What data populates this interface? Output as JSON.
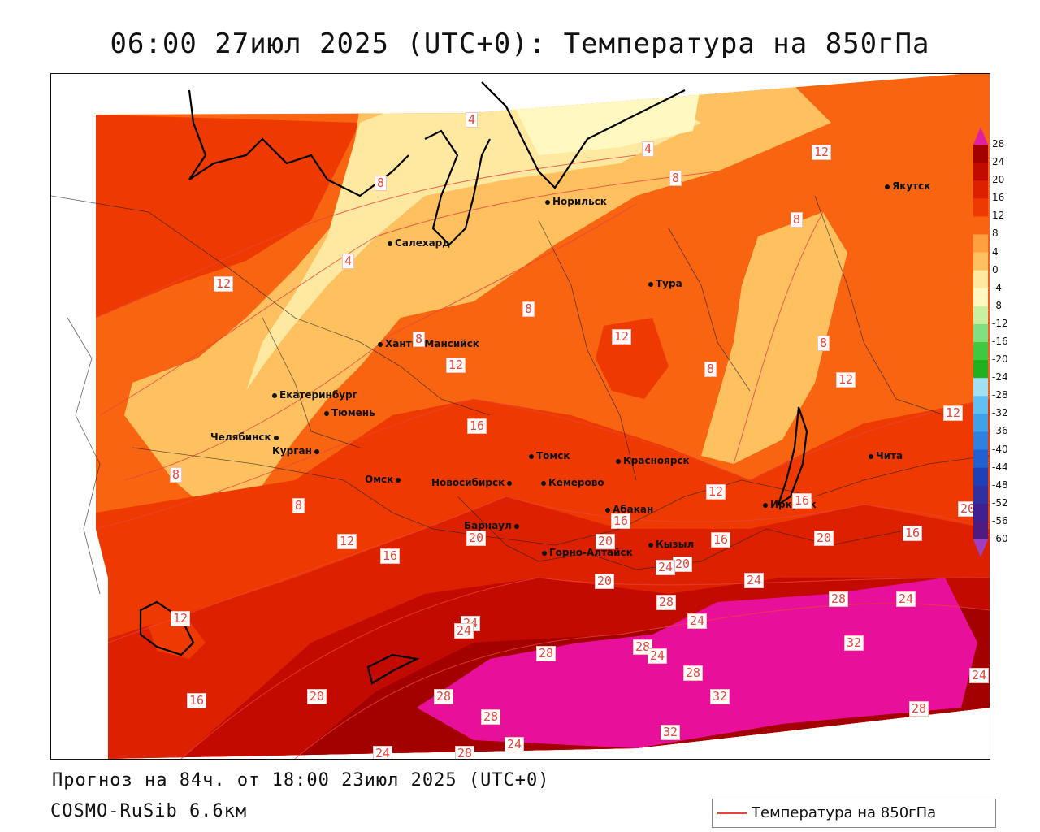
{
  "title": "06:00 27июл 2025 (UTC+0): Температура на 850гПа",
  "footer": {
    "forecast": "Прогноз на 84ч. от 18:00 23июл 2025 (UTC+0)",
    "model": "COSMO-RuSib 6.6км"
  },
  "legend": {
    "label": "Температура на 850гПа",
    "line_color": "#e8443a"
  },
  "colorbar": {
    "ticks": [
      "28",
      "24",
      "20",
      "16",
      "12",
      "8",
      "4",
      "0",
      "-4",
      "-8",
      "-12",
      "-16",
      "-20",
      "-24",
      "-28",
      "-32",
      "-36",
      "-40",
      "-44",
      "-48",
      "-52",
      "-56",
      "-60"
    ],
    "colors": [
      "#a30000",
      "#c20a00",
      "#dd2000",
      "#ee3a00",
      "#f86410",
      "#ffa040",
      "#ffc060",
      "#ffe8a0",
      "#fff8c0",
      "#c8f0a0",
      "#80e080",
      "#40c840",
      "#20b020",
      "#a0e0f0",
      "#60c0f0",
      "#40a0e8",
      "#3080e0",
      "#2060d0",
      "#2040b8",
      "#3030a0",
      "#402090",
      "#501a80"
    ],
    "top_color": "#e020a0",
    "bottom_color": "#a040c0"
  },
  "cities": [
    {
      "name": "Норильск"
    },
    {
      "name": "Якутск"
    },
    {
      "name": "Салехард"
    },
    {
      "name": "Тура"
    },
    {
      "name": "Ханты-Мансийск"
    },
    {
      "name": "Екатеринбург"
    },
    {
      "name": "Тюмень"
    },
    {
      "name": "Челябинск"
    },
    {
      "name": "Курган"
    },
    {
      "name": "Томск"
    },
    {
      "name": "Красноярск"
    },
    {
      "name": "Омск"
    },
    {
      "name": "Новосибирск"
    },
    {
      "name": "Кемерово"
    },
    {
      "name": "Абакан"
    },
    {
      "name": "Иркутск"
    },
    {
      "name": "Чита"
    },
    {
      "name": "Барнаул"
    },
    {
      "name": "Кызыл"
    },
    {
      "name": "Горно-Алтайск"
    }
  ],
  "contour_labels": [
    "4",
    "4",
    "8",
    "4",
    "8",
    "12",
    "8",
    "12",
    "12",
    "8",
    "8",
    "8",
    "12",
    "12",
    "8",
    "12",
    "16",
    "12",
    "16",
    "8",
    "12",
    "16",
    "16",
    "20",
    "20",
    "20",
    "16",
    "16",
    "20",
    "24",
    "24",
    "20",
    "28",
    "24",
    "28",
    "24",
    "24",
    "28",
    "28",
    "28",
    "24",
    "32",
    "28",
    "32",
    "28",
    "28",
    "24",
    "28",
    "24",
    "32",
    "20",
    "20",
    "24",
    "24",
    "12",
    "16",
    "12",
    "8"
  ]
}
